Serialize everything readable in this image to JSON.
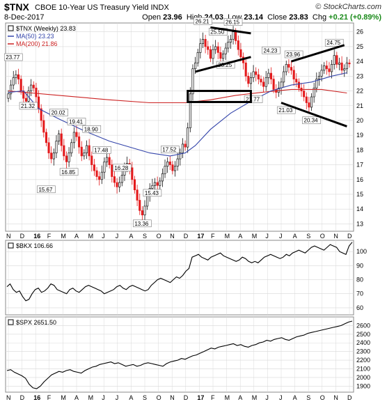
{
  "header": {
    "symbol": "$TNX",
    "description": "CBOE 10-Year US Treasury Yield INDX",
    "brand": "© StockCharts.com",
    "date": "8-Dec-2017",
    "open_label": "Open",
    "open": "23.96",
    "high_label": "High",
    "high": "24.03",
    "low_label": "Low",
    "low": "23.14",
    "close_label": "Close",
    "close": "23.83",
    "chg_label": "Chg",
    "chg": "+0.21 (+0.89%)"
  },
  "colors": {
    "up": "#111111",
    "down": "#e41a1c",
    "ma50": "#3344aa",
    "ma200": "#cc2222",
    "grid": "#d8d8d8",
    "annotation": "#000000"
  },
  "chart_data": [
    {
      "type": "candlestick",
      "legend": [
        {
          "label": "$TNX (Weekly) 23.83",
          "color": "#000000",
          "marker": "square"
        },
        {
          "label": "MA(50) 23.23",
          "color": "#3344aa",
          "marker": "line"
        },
        {
          "label": "MA(200) 21.86",
          "color": "#cc2222",
          "marker": "line"
        }
      ],
      "legend_placement": "top-left",
      "ylim": [
        12.5,
        26.6
      ],
      "yticks": [
        13,
        14,
        15,
        16,
        17,
        18,
        19,
        20,
        21,
        22,
        23,
        24,
        25,
        26
      ],
      "x_axis_labels": [
        "N",
        "D",
        "16",
        "F",
        "M",
        "A",
        "M",
        "J",
        "J",
        "A",
        "S",
        "O",
        "N",
        "D",
        "17",
        "F",
        "M",
        "A",
        "M",
        "J",
        "J",
        "A",
        "S",
        "O",
        "N",
        "D"
      ],
      "x_axis_month_index": [
        0,
        1,
        2,
        3,
        4,
        5,
        6,
        7,
        8,
        9,
        10,
        11,
        12,
        13,
        14,
        15,
        16,
        17,
        18,
        19,
        20,
        21,
        22,
        23,
        24,
        25
      ],
      "weekly_close": [
        21.8,
        22.4,
        22.9,
        23.1,
        22.8,
        22.0,
        21.5,
        21.3,
        22.0,
        22.4,
        22.2,
        21.6,
        20.8,
        20.0,
        19.2,
        18.5,
        17.8,
        17.4,
        17.8,
        18.6,
        19.1,
        18.3,
        17.6,
        17.2,
        17.8,
        18.5,
        19.2,
        18.9,
        18.2,
        17.6,
        17.8,
        18.3,
        17.6,
        17.0,
        16.6,
        16.2,
        16.0,
        16.5,
        17.2,
        17.5,
        17.0,
        16.2,
        15.8,
        15.5,
        15.8,
        16.3,
        16.8,
        17.1,
        16.8,
        16.0,
        15.3,
        14.6,
        13.9,
        13.6,
        14.2,
        14.9,
        15.4,
        15.6,
        15.8,
        15.6,
        15.9,
        16.4,
        16.9,
        17.2,
        17.0,
        16.6,
        16.9,
        17.4,
        17.8,
        18.4,
        18.2,
        19.5,
        21.8,
        23.5,
        23.9,
        24.6,
        25.2,
        25.5,
        25.0,
        24.8,
        24.2,
        24.8,
        25.0,
        24.6,
        24.2,
        24.5,
        24.9,
        25.3,
        25.5,
        26.0,
        25.4,
        24.8,
        24.3,
        23.9,
        23.0,
        22.5,
        22.9,
        23.3,
        23.1,
        22.8,
        22.6,
        22.3,
        22.9,
        23.2,
        22.8,
        22.1,
        21.9,
        22.2,
        22.6,
        23.3,
        23.8,
        23.6,
        23.4,
        22.8,
        22.6,
        22.2,
        22.0,
        21.6,
        21.2,
        20.9,
        21.6,
        22.2,
        22.8,
        23.0,
        23.4,
        23.7,
        23.5,
        23.3,
        23.8,
        24.4,
        23.8,
        23.9,
        23.4,
        23.5,
        23.9,
        23.83
      ],
      "ma50_points": [
        [
          0,
          21.9
        ],
        [
          6,
          22.0
        ],
        [
          12,
          20.8
        ],
        [
          20,
          20.1
        ],
        [
          30,
          19.3
        ],
        [
          40,
          18.6
        ],
        [
          48,
          18.2
        ],
        [
          56,
          17.8
        ],
        [
          64,
          17.6
        ],
        [
          70,
          17.8
        ],
        [
          74,
          18.3
        ],
        [
          80,
          19.4
        ],
        [
          88,
          20.5
        ],
        [
          96,
          21.3
        ],
        [
          104,
          22.0
        ],
        [
          112,
          22.4
        ],
        [
          120,
          22.6
        ],
        [
          128,
          23.0
        ],
        [
          134,
          23.23
        ]
      ],
      "ma200_points": [
        [
          0,
          22.0
        ],
        [
          20,
          21.7
        ],
        [
          40,
          21.4
        ],
        [
          56,
          21.2
        ],
        [
          70,
          21.2
        ],
        [
          80,
          21.4
        ],
        [
          90,
          21.7
        ],
        [
          100,
          21.9
        ],
        [
          112,
          22.1
        ],
        [
          124,
          22.1
        ],
        [
          134,
          21.86
        ]
      ],
      "annotations": [
        {
          "label": "23.77",
          "x": 2,
          "y": 23.77
        },
        {
          "label": "21.32",
          "x": 8,
          "y": 21.32
        },
        {
          "label": "20.02",
          "x": 20,
          "y": 20.02
        },
        {
          "label": "19.41",
          "x": 27,
          "y": 19.41
        },
        {
          "label": "18.90",
          "x": 33,
          "y": 18.9
        },
        {
          "label": "17.48",
          "x": 37,
          "y": 17.48
        },
        {
          "label": "16.85",
          "x": 24,
          "y": 16.85
        },
        {
          "label": "15.67",
          "x": 15,
          "y": 15.67
        },
        {
          "label": "16.28",
          "x": 45,
          "y": 16.28
        },
        {
          "label": "13.36",
          "x": 53,
          "y": 13.36
        },
        {
          "label": "15.43",
          "x": 57,
          "y": 15.43
        },
        {
          "label": "17.52",
          "x": 64,
          "y": 17.52
        },
        {
          "label": "26.21",
          "x": 77,
          "y": 26.21
        },
        {
          "label": "25.50",
          "x": 83,
          "y": 25.5
        },
        {
          "label": "26.15",
          "x": 89,
          "y": 26.15
        },
        {
          "label": "23.25",
          "x": 86,
          "y": 23.25
        },
        {
          "label": "24.23",
          "x": 104,
          "y": 24.23
        },
        {
          "label": "21.77",
          "x": 97,
          "y": 21.77
        },
        {
          "label": "23.96",
          "x": 113,
          "y": 23.96
        },
        {
          "label": "21.03",
          "x": 110,
          "y": 21.03
        },
        {
          "label": "20.34",
          "x": 120,
          "y": 20.34
        },
        {
          "label": "24.75",
          "x": 129,
          "y": 24.75
        }
      ]
    },
    {
      "type": "line",
      "series": [
        {
          "name": "$BKX 106.66",
          "color": "#000000"
        }
      ],
      "ylim": [
        55,
        108
      ],
      "yticks": [
        60,
        70,
        80,
        90,
        100
      ],
      "values": [
        75,
        77,
        73,
        71,
        72,
        68,
        65,
        66,
        70,
        73,
        74,
        71,
        72,
        74,
        77,
        76,
        73,
        72,
        71,
        70,
        73,
        74,
        72,
        71,
        73,
        75,
        76,
        75,
        74,
        73,
        72,
        70,
        71,
        72,
        73,
        75,
        76,
        74,
        73,
        75,
        76,
        75,
        74,
        73,
        72,
        73,
        76,
        78,
        80,
        81,
        80,
        79,
        78,
        80,
        82,
        81,
        83,
        86,
        88,
        96,
        97,
        98,
        96,
        95,
        94,
        96,
        97,
        98,
        99,
        97,
        96,
        95,
        94,
        93,
        94,
        96,
        95,
        93,
        92,
        93,
        92,
        94,
        96,
        97,
        98,
        97,
        96,
        95,
        96,
        98,
        97,
        99,
        100,
        101,
        100,
        99,
        101,
        103,
        104,
        103,
        102,
        101,
        103,
        105,
        104,
        103,
        100,
        99,
        98,
        104,
        106.66
      ]
    },
    {
      "type": "line",
      "series": [
        {
          "name": "$SPX 2651.50",
          "color": "#000000"
        }
      ],
      "ylim": [
        1830,
        2700
      ],
      "yticks": [
        1900,
        2000,
        2100,
        2200,
        2300,
        2400,
        2500,
        2600
      ],
      "values": [
        2080,
        2090,
        2060,
        2040,
        2020,
        1990,
        1920,
        1880,
        1870,
        1900,
        1950,
        1990,
        2030,
        2050,
        2070,
        2060,
        2080,
        2090,
        2070,
        2060,
        2050,
        2080,
        2100,
        2120,
        2130,
        2150,
        2160,
        2170,
        2180,
        2160,
        2170,
        2150,
        2130,
        2140,
        2150,
        2130,
        2140,
        2160,
        2170,
        2160,
        2150,
        2140,
        2130,
        2160,
        2180,
        2190,
        2200,
        2220,
        2210,
        2230,
        2250,
        2260,
        2280,
        2300,
        2320,
        2340,
        2330,
        2350,
        2360,
        2370,
        2380,
        2390,
        2370,
        2380,
        2360,
        2350,
        2370,
        2380,
        2400,
        2410,
        2430,
        2420,
        2440,
        2450,
        2460,
        2440,
        2430,
        2450,
        2470,
        2480,
        2490,
        2510,
        2520,
        2530,
        2540,
        2550,
        2560,
        2570,
        2580,
        2590,
        2600,
        2620,
        2640,
        2651.5
      ]
    }
  ]
}
